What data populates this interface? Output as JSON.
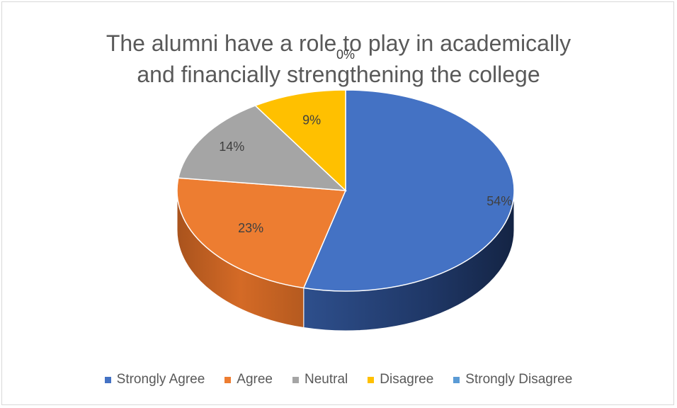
{
  "chart_data": {
    "type": "pie",
    "title": "The alumni have a role to play in academically and financially strengthening the college",
    "title_lines": [
      "The alumni have a role to play in academically",
      "and financially strengthening the college"
    ],
    "categories": [
      "Strongly Agree",
      "Agree",
      "Neutral",
      "Disagree",
      "Strongly Disagree"
    ],
    "values": [
      54,
      23,
      14,
      9,
      0
    ],
    "data_labels": [
      "54%",
      "23%",
      "14%",
      "9%",
      "0%"
    ],
    "colors": [
      "#4472c4",
      "#ed7d31",
      "#a5a5a5",
      "#ffc000",
      "#5b9bd5"
    ],
    "legend_position": "bottom",
    "style": "3d-pie"
  }
}
